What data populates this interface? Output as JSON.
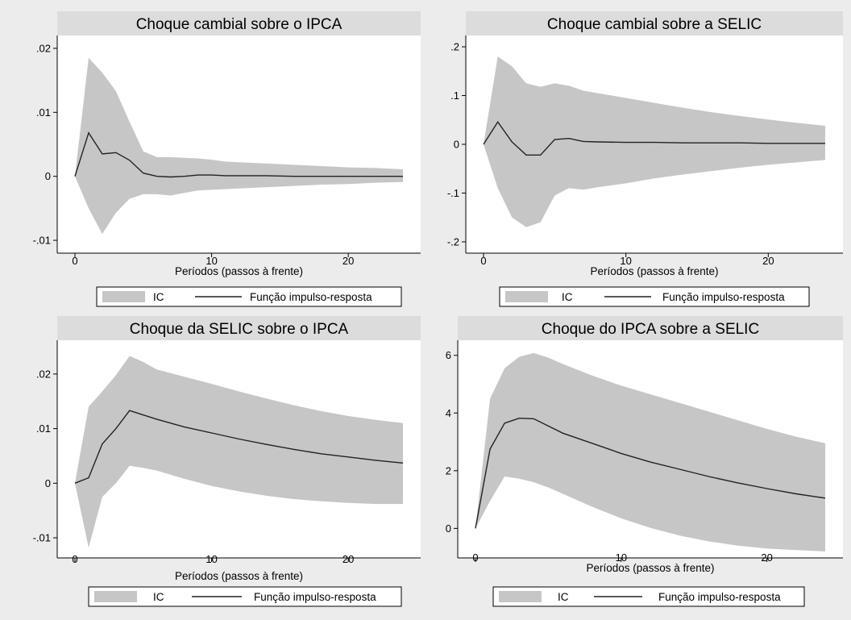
{
  "colors": {
    "band": "#c6c6c6",
    "line": "#222222",
    "background": "#ececec",
    "plot_area": "#ffffff",
    "title_strip": "#dcdcdc"
  },
  "chart_data": [
    {
      "type": "area",
      "title": "Choque cambial sobre o IPCA",
      "xlabel": "Períodos (passos à frente)",
      "ylabel": "",
      "xlim": [
        0,
        24
      ],
      "ylim": [
        -0.011,
        0.021
      ],
      "xticks": [
        0,
        10,
        20
      ],
      "yticks": [
        -0.01,
        0,
        0.01,
        0.02
      ],
      "ytick_labels": [
        "-.01",
        "0",
        ".01",
        ".02"
      ],
      "grid": false,
      "legend": {
        "position": "bottom",
        "entries": [
          "IC",
          "Função impulso-resposta"
        ]
      },
      "x": [
        0,
        1,
        2,
        3,
        4,
        5,
        6,
        7,
        8,
        9,
        10,
        11,
        12,
        14,
        16,
        18,
        20,
        22,
        24
      ],
      "series": [
        {
          "name": "Função impulso-resposta",
          "values": [
            0,
            0.0068,
            0.0035,
            0.0037,
            0.0025,
            0.0005,
            0.0,
            -0.0001,
            0.0,
            0.0002,
            0.0002,
            0.0001,
            0.0001,
            0.0001,
            0.0,
            0.0,
            0.0,
            0.0,
            0.0
          ]
        },
        {
          "name": "IC",
          "lower": [
            0,
            -0.005,
            -0.009,
            -0.0057,
            -0.0035,
            -0.0028,
            -0.0028,
            -0.003,
            -0.0026,
            -0.0022,
            -0.0021,
            -0.002,
            -0.0019,
            -0.0017,
            -0.0015,
            -0.0013,
            -0.0012,
            -0.001,
            -0.0009
          ],
          "upper": [
            0,
            0.0185,
            0.0162,
            0.0133,
            0.0085,
            0.0039,
            0.003,
            0.003,
            0.0029,
            0.0028,
            0.0026,
            0.0023,
            0.0022,
            0.002,
            0.0018,
            0.0016,
            0.0014,
            0.0013,
            0.0011
          ]
        }
      ]
    },
    {
      "type": "area",
      "title": "Choque cambial sobre a SELIC",
      "xlabel": "Períodos (passos à frente)",
      "ylabel": "",
      "xlim": [
        0,
        24
      ],
      "ylim": [
        -0.21,
        0.21
      ],
      "xticks": [
        0,
        10,
        20
      ],
      "yticks": [
        -0.2,
        -0.1,
        0,
        0.1,
        0.2
      ],
      "ytick_labels": [
        "-.2",
        "-.1",
        "0",
        ".1",
        ".2"
      ],
      "grid": false,
      "legend": {
        "position": "bottom",
        "entries": [
          "IC",
          "Função impulso-resposta"
        ]
      },
      "x": [
        0,
        1,
        2,
        3,
        4,
        5,
        6,
        7,
        8,
        10,
        12,
        14,
        16,
        18,
        20,
        22,
        24
      ],
      "series": [
        {
          "name": "Função impulso-resposta",
          "values": [
            0,
            0.046,
            0.005,
            -0.022,
            -0.022,
            0.01,
            0.012,
            0.006,
            0.005,
            0.004,
            0.004,
            0.003,
            0.003,
            0.003,
            0.002,
            0.002,
            0.002
          ]
        },
        {
          "name": "IC",
          "lower": [
            0,
            -0.09,
            -0.15,
            -0.17,
            -0.16,
            -0.105,
            -0.09,
            -0.093,
            -0.088,
            -0.08,
            -0.07,
            -0.062,
            -0.055,
            -0.048,
            -0.042,
            -0.037,
            -0.032
          ],
          "upper": [
            0,
            0.18,
            0.16,
            0.125,
            0.118,
            0.125,
            0.12,
            0.11,
            0.105,
            0.095,
            0.085,
            0.075,
            0.066,
            0.058,
            0.051,
            0.044,
            0.038
          ]
        }
      ]
    },
    {
      "type": "area",
      "title": "Choque da SELIC sobre o IPCA",
      "xlabel": "Períodos (passos à frente)",
      "ylabel": "",
      "xlim": [
        0,
        24
      ],
      "ylim": [
        -0.0125,
        0.025
      ],
      "xticks": [
        0,
        10,
        20
      ],
      "yticks": [
        -0.01,
        0,
        0.01,
        0.02
      ],
      "ytick_labels": [
        "-.01",
        "0",
        ".01",
        ".02"
      ],
      "grid": false,
      "legend": {
        "position": "bottom",
        "entries": [
          "IC",
          "Função impulso-resposta"
        ]
      },
      "x": [
        0,
        1,
        2,
        3,
        4,
        5,
        6,
        8,
        10,
        12,
        14,
        16,
        18,
        20,
        22,
        24
      ],
      "series": [
        {
          "name": "Função impulso-resposta",
          "values": [
            0,
            0.001,
            0.0072,
            0.01,
            0.0133,
            0.0125,
            0.0117,
            0.0103,
            0.0092,
            0.0081,
            0.0071,
            0.0062,
            0.0054,
            0.0048,
            0.0042,
            0.0037
          ]
        },
        {
          "name": "IC",
          "lower": [
            0,
            -0.0118,
            -0.0025,
            0.0,
            0.0032,
            0.0028,
            0.0023,
            0.0008,
            -0.0005,
            -0.0015,
            -0.0023,
            -0.0029,
            -0.0033,
            -0.0036,
            -0.0038,
            -0.0038
          ],
          "upper": [
            0,
            0.014,
            0.0168,
            0.0198,
            0.0233,
            0.0222,
            0.0208,
            0.0195,
            0.0182,
            0.0168,
            0.0155,
            0.0143,
            0.0132,
            0.0123,
            0.0116,
            0.011
          ]
        }
      ]
    },
    {
      "type": "area",
      "title": "Choque do IPCA sobre a SELIC",
      "xlabel": "Períodos (passos à frente)",
      "ylabel": "",
      "xlim": [
        0,
        24
      ],
      "ylim": [
        -0.8,
        6.3
      ],
      "xticks": [
        0,
        10,
        20
      ],
      "yticks": [
        0,
        2,
        4,
        6
      ],
      "ytick_labels": [
        "0",
        "2",
        "4",
        "6"
      ],
      "grid": false,
      "legend": {
        "position": "bottom",
        "entries": [
          "IC",
          "Função impulso-resposta"
        ]
      },
      "x": [
        0,
        1,
        2,
        3,
        4,
        5,
        6,
        8,
        10,
        12,
        14,
        16,
        18,
        20,
        22,
        24
      ],
      "series": [
        {
          "name": "Função impulso-resposta",
          "values": [
            0,
            2.75,
            3.65,
            3.82,
            3.8,
            3.55,
            3.3,
            2.95,
            2.6,
            2.3,
            2.05,
            1.8,
            1.58,
            1.38,
            1.2,
            1.05
          ]
        },
        {
          "name": "IC",
          "lower": [
            0,
            0.95,
            1.8,
            1.72,
            1.6,
            1.42,
            1.2,
            0.75,
            0.35,
            0.02,
            -0.25,
            -0.45,
            -0.6,
            -0.7,
            -0.75,
            -0.8
          ],
          "upper": [
            0,
            4.5,
            5.55,
            5.95,
            6.08,
            5.92,
            5.7,
            5.3,
            4.95,
            4.65,
            4.35,
            4.05,
            3.75,
            3.45,
            3.18,
            2.95
          ]
        }
      ]
    }
  ]
}
